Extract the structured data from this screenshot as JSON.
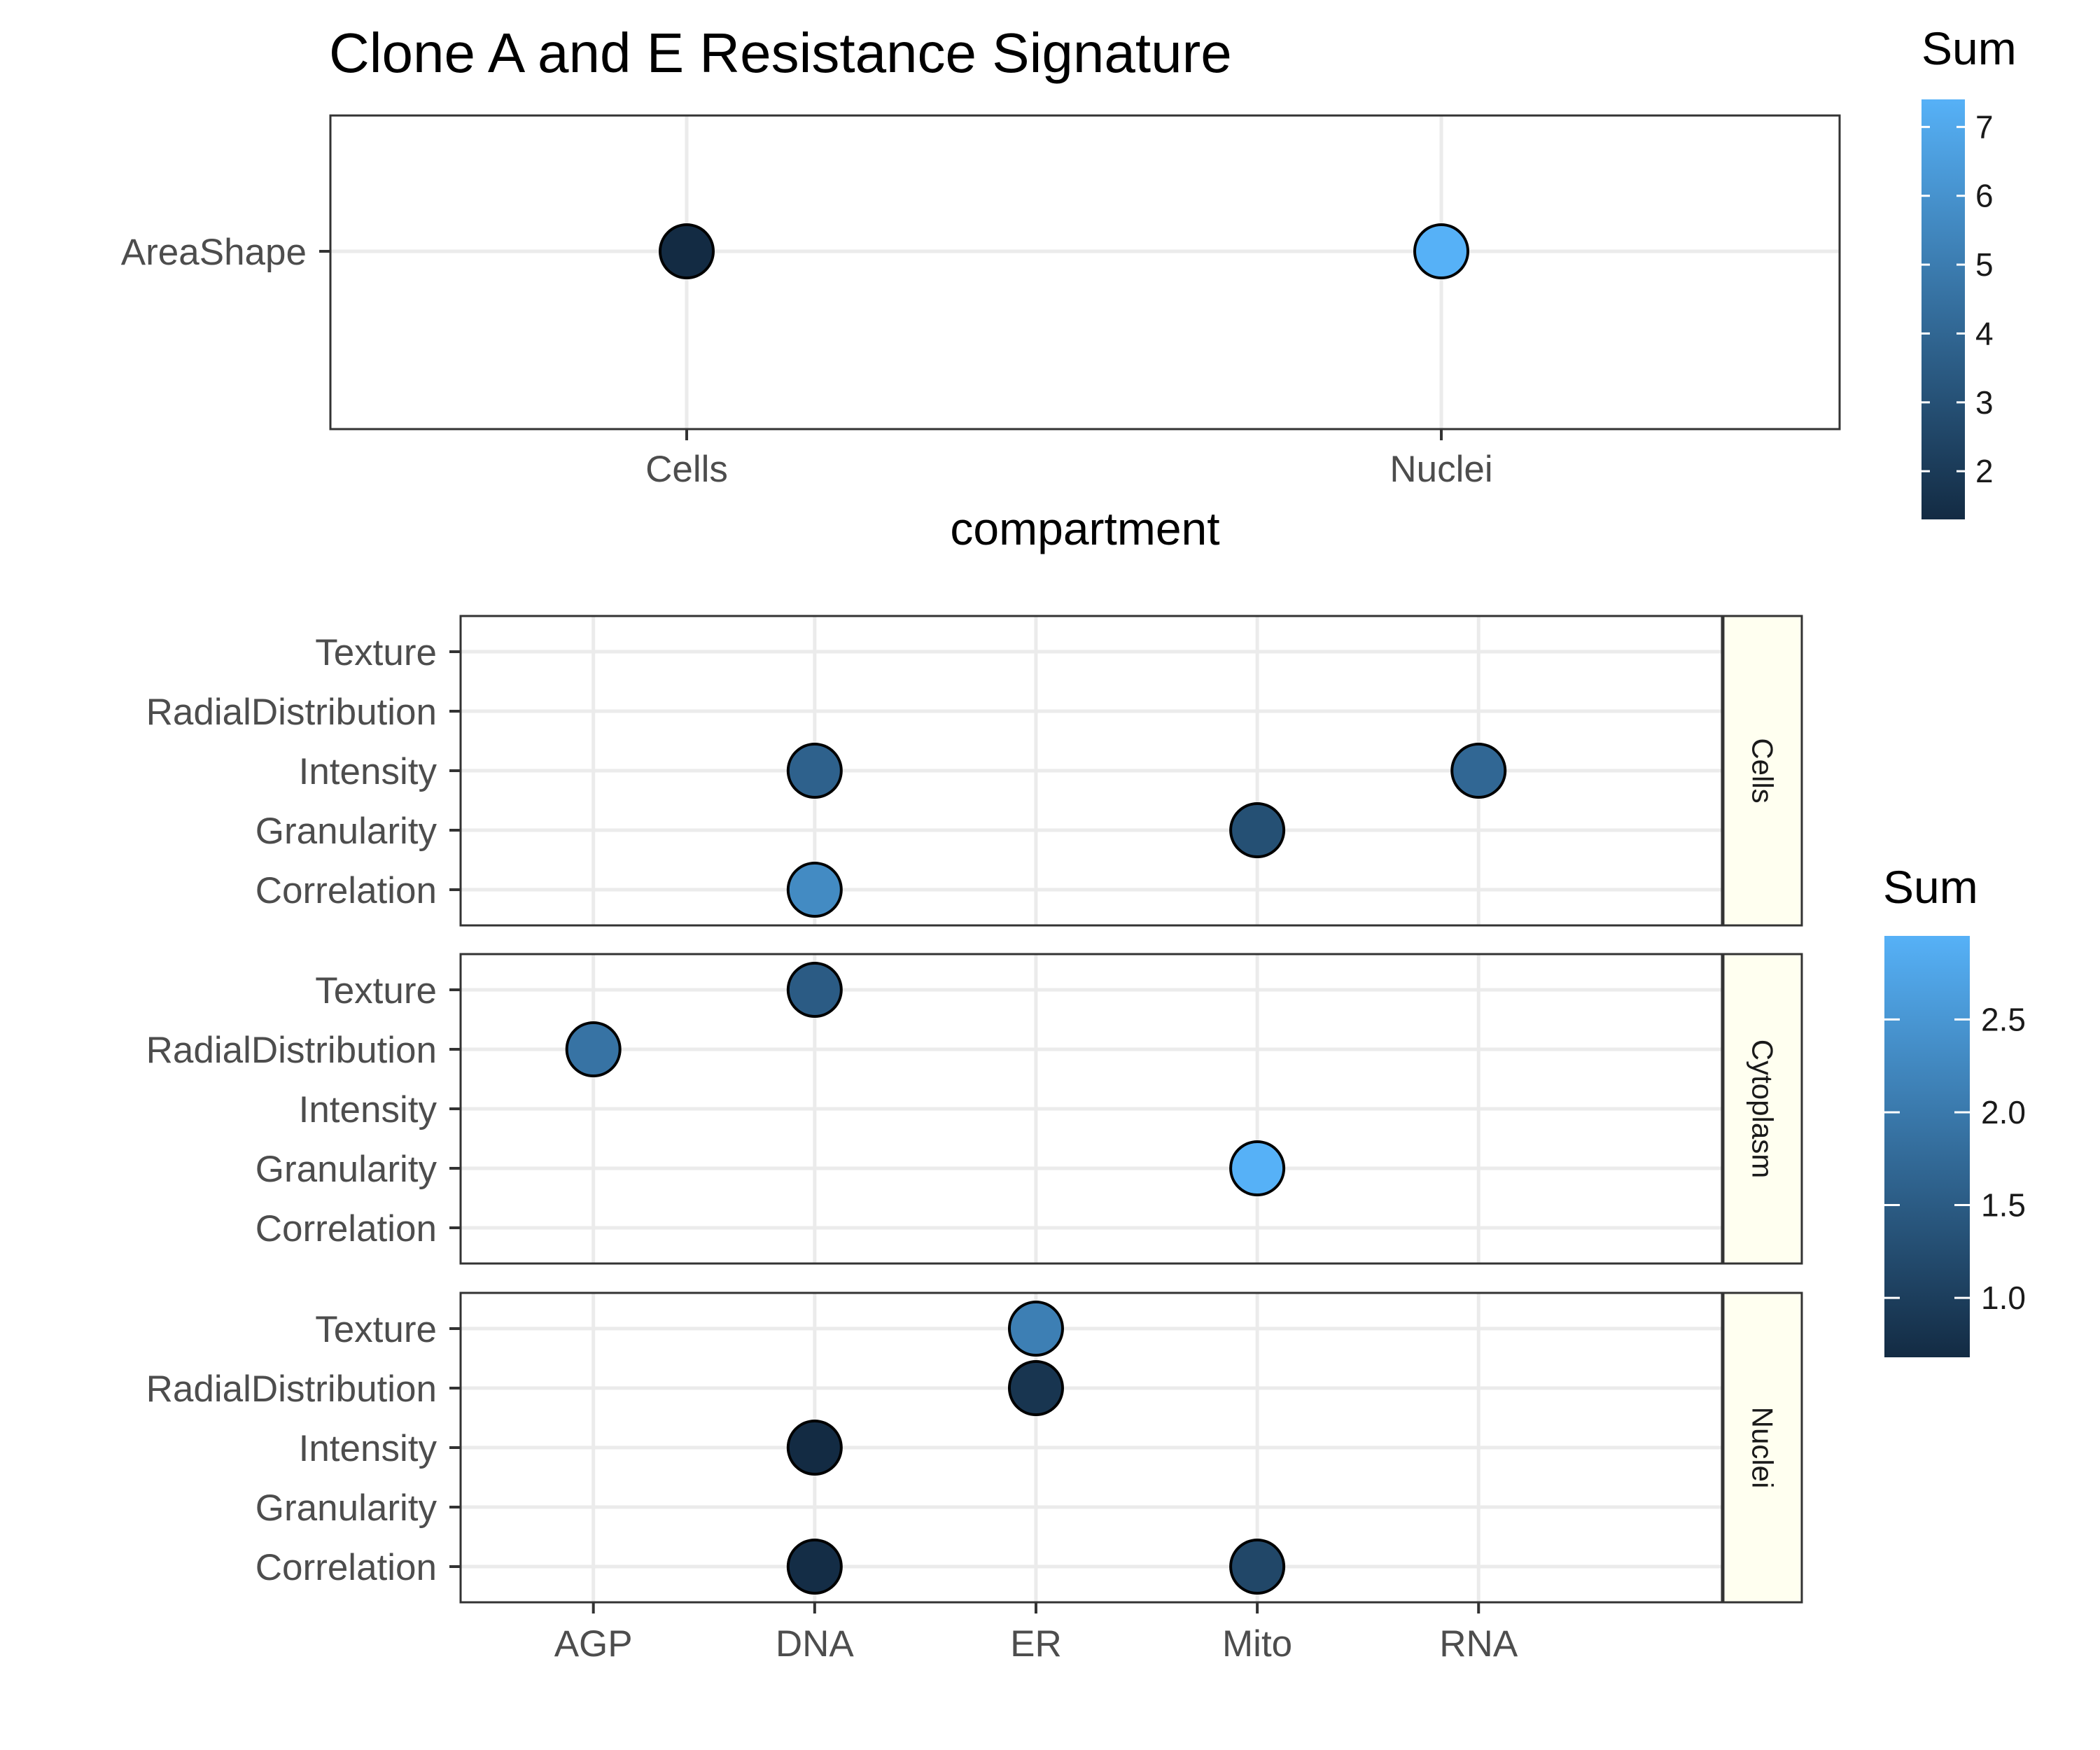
{
  "chart_data": [
    {
      "type": "scatter",
      "title": "Clone A and E Resistance Signature",
      "xlabel": "compartment",
      "ylabel": "",
      "x_categories": [
        "Cells",
        "Nuclei"
      ],
      "y_categories": [
        "AreaShape"
      ],
      "legend": {
        "title": "Sum",
        "range": [
          1.3,
          7.4
        ],
        "ticks": [
          2,
          3,
          4,
          5,
          6,
          7
        ],
        "placement": "right"
      },
      "points": [
        {
          "x": "Cells",
          "y": "AreaShape",
          "sum": 1.3
        },
        {
          "x": "Nuclei",
          "y": "AreaShape",
          "sum": 7.4
        }
      ],
      "grid": true
    },
    {
      "type": "scatter",
      "title": "",
      "xlabel": "",
      "ylabel": "",
      "x_categories": [
        "AGP",
        "DNA",
        "ER",
        "Mito",
        "RNA"
      ],
      "y_categories": [
        "Correlation",
        "Granularity",
        "Intensity",
        "RadialDistribution",
        "Texture"
      ],
      "facets": [
        "Cells",
        "Cytoplasm",
        "Nuclei"
      ],
      "legend": {
        "title": "Sum",
        "range": [
          0.68,
          2.95
        ],
        "ticks": [
          1.0,
          1.5,
          2.0,
          2.5
        ],
        "tick_labels": [
          "1.0",
          "1.5",
          "2.0",
          "2.5"
        ],
        "placement": "right"
      },
      "points": [
        {
          "facet": "Cells",
          "x": "DNA",
          "y": "Intensity",
          "sum": 1.6
        },
        {
          "facet": "Cells",
          "x": "RNA",
          "y": "Intensity",
          "sum": 1.7
        },
        {
          "facet": "Cells",
          "x": "Mito",
          "y": "Granularity",
          "sum": 1.3
        },
        {
          "facet": "Cells",
          "x": "DNA",
          "y": "Correlation",
          "sum": 2.3
        },
        {
          "facet": "Cytoplasm",
          "x": "DNA",
          "y": "Texture",
          "sum": 1.5
        },
        {
          "facet": "Cytoplasm",
          "x": "AGP",
          "y": "RadialDistribution",
          "sum": 1.9
        },
        {
          "facet": "Cytoplasm",
          "x": "Mito",
          "y": "Granularity",
          "sum": 2.95
        },
        {
          "facet": "Nuclei",
          "x": "ER",
          "y": "Texture",
          "sum": 2.1
        },
        {
          "facet": "Nuclei",
          "x": "ER",
          "y": "RadialDistribution",
          "sum": 0.85
        },
        {
          "facet": "Nuclei",
          "x": "DNA",
          "y": "Intensity",
          "sum": 0.68
        },
        {
          "facet": "Nuclei",
          "x": "DNA",
          "y": "Correlation",
          "sum": 0.72
        },
        {
          "facet": "Nuclei",
          "x": "Mito",
          "y": "Correlation",
          "sum": 1.15
        }
      ],
      "grid": true
    }
  ],
  "colors": {
    "low": "#132b43",
    "high": "#56b1f7",
    "grid": "#ebebeb",
    "panel_border": "#333333",
    "strip_fill": "#fffff0",
    "point_outline": "#000000"
  }
}
